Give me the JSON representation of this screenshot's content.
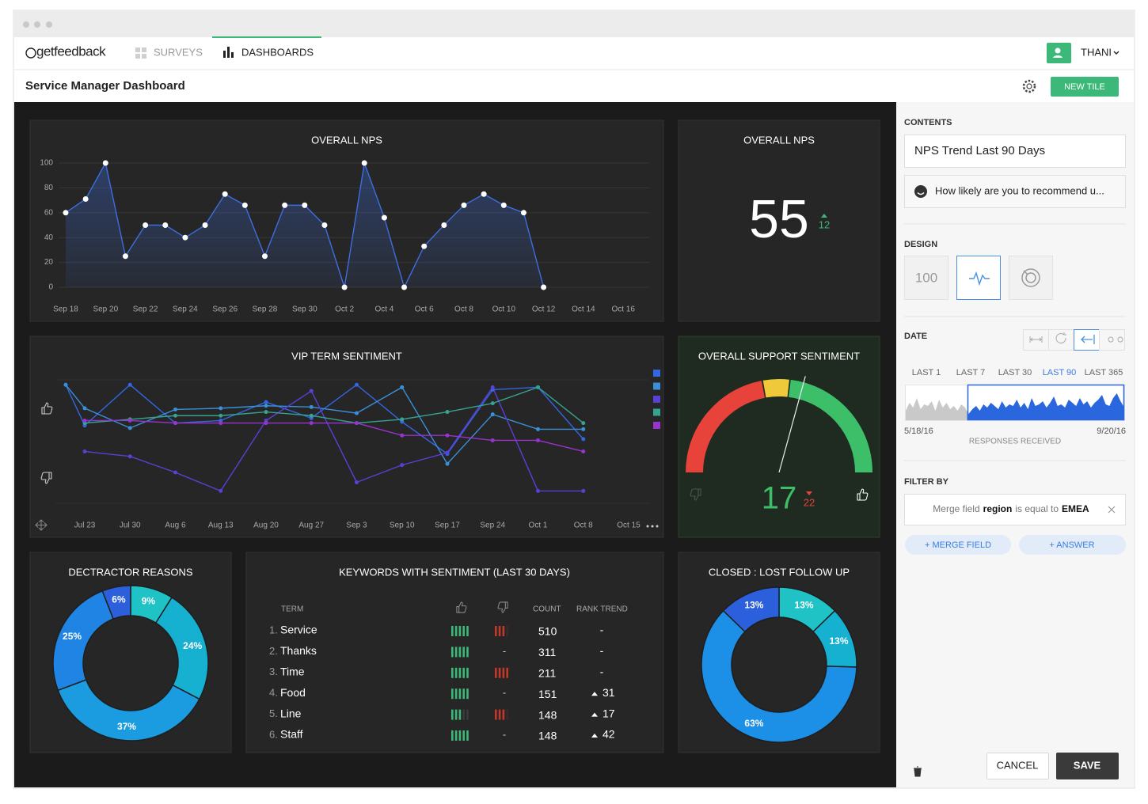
{
  "app": {
    "logo": "getfeedback",
    "nav": [
      "SURVEYS",
      "DASHBOARDS"
    ],
    "user": "THANI"
  },
  "header": {
    "title": "Service Manager Dashboard",
    "new_tile": "NEW TILE"
  },
  "chart_data": [
    {
      "type": "line",
      "title": "OVERALL NPS",
      "area": true,
      "grid": true,
      "color": "#3d6ee0",
      "categories": [
        "Sep 18",
        null,
        "Sep 20",
        null,
        "Sep 22",
        null,
        "Sep 24",
        null,
        "Sep 26",
        null,
        "Sep 28",
        null,
        "Sep 30",
        null,
        "Oct 2",
        null,
        "Oct 4",
        null,
        "Oct 6",
        null,
        "Oct 8",
        null,
        "Oct 10",
        null,
        "Oct 12",
        null,
        "Oct 14",
        null,
        "Oct 16"
      ],
      "values": [
        60,
        71,
        100,
        25,
        50,
        50,
        40,
        50,
        75,
        66,
        25,
        66,
        66,
        50,
        0,
        100,
        56,
        0,
        33,
        50,
        66,
        75,
        66,
        60,
        0,
        null,
        null,
        null,
        null
      ],
      "ylim": [
        0,
        100
      ],
      "yticks": [
        0,
        20,
        40,
        60,
        80,
        100
      ]
    },
    {
      "type": "number",
      "title": "OVERALL NPS",
      "value": 55,
      "change": 12,
      "direction": "up"
    },
    {
      "type": "line",
      "title": "VIP TERM SENTIMENT",
      "grid": false,
      "categories": [
        null,
        "Jul 23",
        "Jul 30",
        "Aug 6",
        "Aug 13",
        "Aug 20",
        "Aug 27",
        "Sep 3",
        "Sep 10",
        "Sep 17",
        "Sep 24",
        "Oct 1",
        "Oct 8",
        "Oct 15"
      ],
      "series": [
        {
          "color": "#3266e3",
          "values": [
            96,
            63,
            96,
            65,
            67,
            82,
            69,
            96,
            66,
            40,
            92,
            94,
            52,
            null
          ]
        },
        {
          "color": "#3a8fd8",
          "values": [
            96,
            77,
            61,
            76,
            77,
            79,
            78,
            73,
            94,
            32,
            72,
            60,
            60,
            null
          ]
        },
        {
          "color": "#5b3fd6",
          "values": [
            null,
            42,
            38,
            25,
            10,
            67,
            91,
            17,
            31,
            41,
            94,
            10,
            10,
            null
          ]
        },
        {
          "color": "#35a38f",
          "values": [
            null,
            65,
            68,
            71,
            71,
            74,
            71,
            65,
            68,
            74,
            81,
            94,
            65,
            null
          ]
        },
        {
          "color": "#9a32cf",
          "values": [
            null,
            67,
            67,
            65,
            65,
            65,
            65,
            65,
            55,
            55,
            51,
            51,
            42,
            null
          ]
        }
      ],
      "ylim": [
        0,
        100
      ]
    },
    {
      "type": "gauge",
      "title": "OVERALL SUPPORT SENTIMENT",
      "value": 17,
      "change": 22,
      "direction": "down",
      "ylim": [
        -100,
        100
      ]
    },
    {
      "type": "pie",
      "title": "DECTRACTOR REASONS",
      "donut": true,
      "values": [
        9,
        24,
        37,
        25,
        6
      ],
      "value_labels": [
        "9%",
        "24%",
        "37%",
        "25%",
        "6%"
      ],
      "colors": [
        "#1fc3c6",
        "#16b1d0",
        "#1b9be0",
        "#1f84e4",
        "#2b5fdc"
      ]
    },
    {
      "type": "pie",
      "title": "CLOSED : LOST FOLLOW UP",
      "donut": true,
      "values": [
        13,
        13,
        63,
        13
      ],
      "value_labels": [
        "13%",
        "13%",
        "63%",
        "13%"
      ],
      "colors": [
        "#1fc3c6",
        "#16b1d0",
        "#1c8fe6",
        "#2b5fdc"
      ]
    },
    {
      "type": "area",
      "xlabel": "RESPONSES RECEIVED",
      "start_label": "5/18/16",
      "end_label": "9/20/16",
      "ylim": [
        0,
        100
      ],
      "values": [
        30,
        55,
        40,
        70,
        35,
        50,
        45,
        60,
        30,
        65,
        40,
        55,
        35,
        45,
        30,
        50,
        40,
        20,
        35,
        45,
        30,
        50,
        40,
        55,
        45,
        35,
        60,
        40,
        50,
        45,
        65,
        40,
        55,
        35,
        70,
        45,
        50,
        60,
        40,
        55,
        75,
        45,
        50,
        40,
        65,
        55,
        45,
        70,
        50,
        60,
        40,
        55,
        65,
        80,
        50,
        45,
        70,
        85,
        60,
        40
      ]
    }
  ],
  "keywords_table": {
    "title": "KEYWORDS WITH SENTIMENT (LAST 30 DAYS)",
    "columns": {
      "term": "TERM",
      "count": "COUNT",
      "trend": "RANK TREND"
    },
    "rows": [
      {
        "rank": "1.",
        "term": "Service",
        "positive": 5,
        "negative": 3,
        "count": 510,
        "trend": "-"
      },
      {
        "rank": "2.",
        "term": "Thanks",
        "positive": 5,
        "negative": "-",
        "count": 311,
        "trend": "-"
      },
      {
        "rank": "3.",
        "term": "Time",
        "positive": 5,
        "negative": 4,
        "count": 211,
        "trend": "-"
      },
      {
        "rank": "4.",
        "term": "Food",
        "positive": 5,
        "negative": "-",
        "count": 151,
        "trend": 31,
        "trend_direction": "up"
      },
      {
        "rank": "5.",
        "term": "Line",
        "positive": 3,
        "negative": 3,
        "count": 148,
        "trend": 17,
        "trend_direction": "up"
      },
      {
        "rank": "6.",
        "term": "Staff",
        "positive": 5,
        "negative": "-",
        "count": 148,
        "trend": 42,
        "trend_direction": "up"
      }
    ]
  },
  "sidebar": {
    "contents_label": "CONTENTS",
    "tile_name": "NPS Trend Last 90 Days",
    "question": "How likely are you to recommend u...",
    "design_label": "DESIGN",
    "design_number": 100,
    "date_label": "DATE",
    "date_ranges": [
      "LAST 1",
      "LAST 7",
      "LAST 30",
      "LAST 90",
      "LAST 365"
    ],
    "active_range": "LAST 90",
    "filter_label": "FILTER BY",
    "filter": {
      "prefix": "Merge field",
      "field": "region",
      "operator": "is equal to",
      "value": "EMEA"
    },
    "buttons": {
      "merge_field": "+ MERGE FIELD",
      "answer": "+ ANSWER",
      "cancel": "CANCEL",
      "save": "SAVE"
    }
  }
}
